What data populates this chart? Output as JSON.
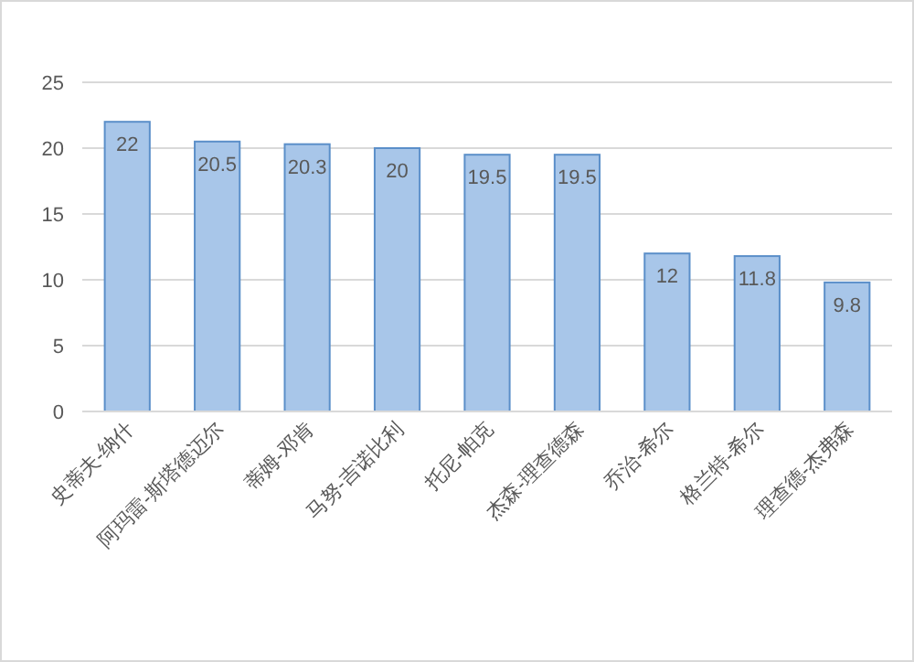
{
  "chart_data": {
    "type": "bar",
    "categories": [
      "史蒂夫-纳什",
      "阿玛雷-斯塔德迈尔",
      "蒂姆-邓肯",
      "马努-吉诺比利",
      "托尼-帕克",
      "杰森-理查德森",
      "乔治-希尔",
      "格兰特-希尔",
      "理查德-杰弗森"
    ],
    "values": [
      22,
      20.5,
      20.3,
      20,
      19.5,
      19.5,
      12,
      11.8,
      9.8
    ],
    "color": "#a8c6e9",
    "ylim": [
      0,
      25
    ],
    "yticks": [
      0,
      5,
      10,
      15,
      20,
      25
    ],
    "grid": "y",
    "data_labels": true
  }
}
